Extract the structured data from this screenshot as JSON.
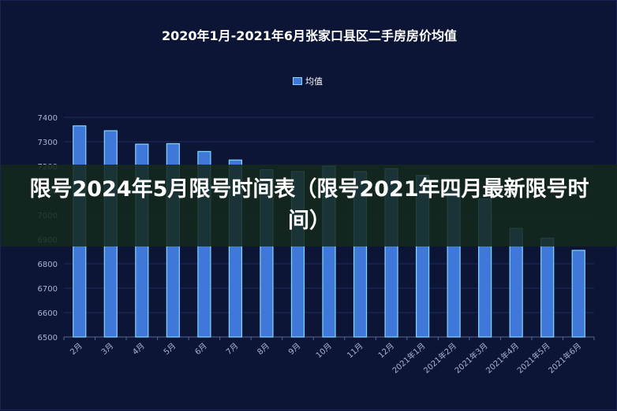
{
  "chart_data": {
    "type": "bar",
    "title": "2020年1月-2021年6月张家口县区二手房房价均值",
    "legend_position": "top-center",
    "categories": [
      "2月",
      "3月",
      "4月",
      "5月",
      "6月",
      "7月",
      "8月",
      "9月",
      "10月",
      "11月",
      "12月",
      "2021年1月",
      "2021年2月",
      "2021年3月",
      "2021年4月",
      "2021年5月",
      "2021年6月"
    ],
    "series": [
      {
        "name": "均值",
        "values": [
          7365,
          7345,
          7290,
          7292,
          7260,
          7225,
          7185,
          7178,
          7200,
          7178,
          7190,
          7162,
          7110,
          7065,
          6945,
          6905,
          6855
        ]
      }
    ],
    "ylim": [
      6500,
      7400
    ],
    "yticks": [
      6500,
      6600,
      6700,
      6800,
      6900,
      7000,
      7100,
      7200,
      7300,
      7400
    ],
    "grid": true,
    "bar_color": "#3f78d8",
    "bar_edge_color": "#7fd8ff"
  },
  "overlay": {
    "text": "限号2024年5月限号时间表（限号2021年四月最新限号时间）"
  }
}
